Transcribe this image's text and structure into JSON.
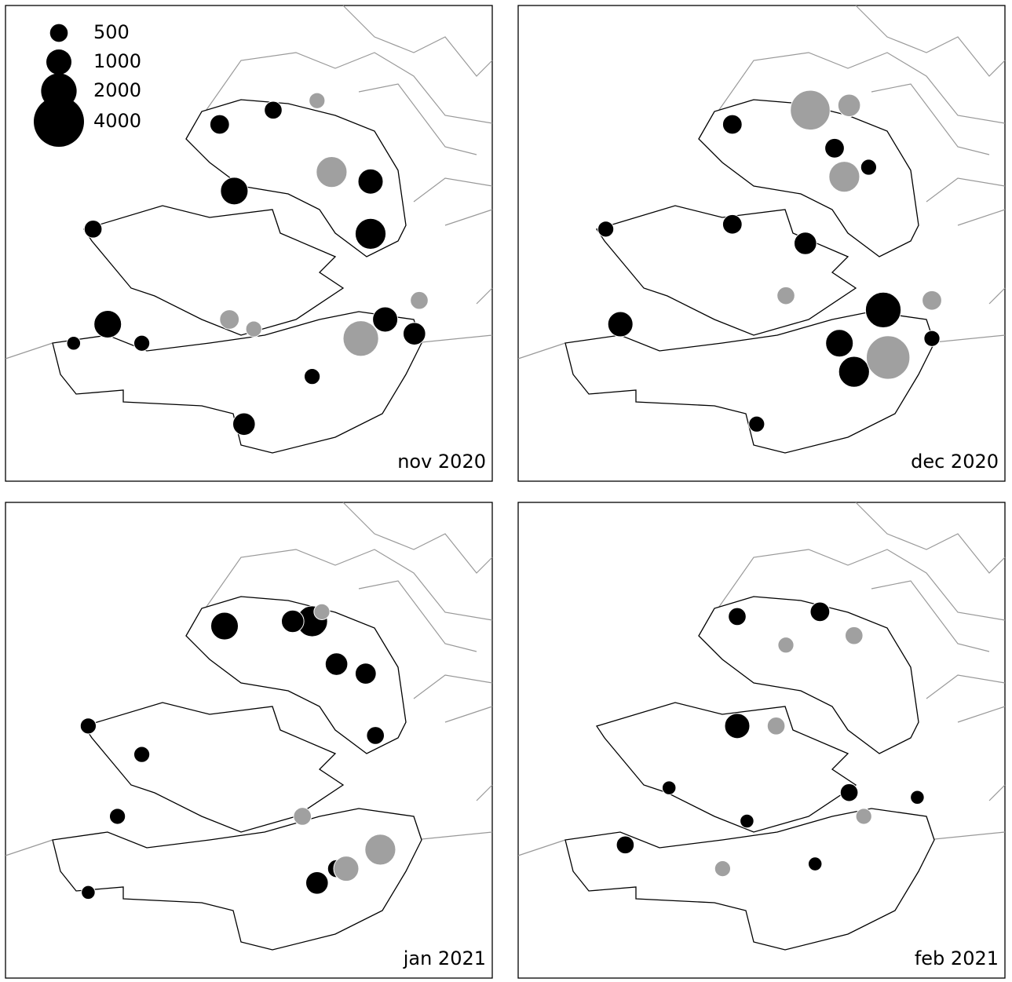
{
  "chart_data": [
    {
      "type": "bubble",
      "title": "nov 2020",
      "size_legend": {
        "values": [
          500,
          1000,
          2000,
          4000
        ]
      },
      "series": [
        {
          "color": "#000000",
          "x": [
            0.75,
            0.47,
            0.21,
            0.49,
            0.78,
            0.84,
            0.18,
            0.75,
            0.44,
            0.55,
            0.28,
            0.63,
            0.14
          ],
          "y": [
            0.48,
            0.39,
            0.67,
            0.88,
            0.66,
            0.69,
            0.47,
            0.37,
            0.25,
            0.22,
            0.71,
            0.78,
            0.71
          ],
          "values": [
            1500,
            1200,
            1200,
            800,
            1000,
            800,
            500,
            1000,
            600,
            500,
            400,
            400,
            300
          ]
        },
        {
          "color": "#a0a0a0",
          "x": [
            0.73,
            0.67,
            0.46,
            0.51,
            0.64,
            0.85
          ],
          "y": [
            0.7,
            0.35,
            0.66,
            0.68,
            0.2,
            0.62
          ],
          "values": [
            2000,
            1500,
            600,
            400,
            400,
            500
          ]
        }
      ]
    },
    {
      "type": "bubble",
      "title": "dec 2020",
      "series": [
        {
          "color": "#000000",
          "x": [
            0.75,
            0.69,
            0.59,
            0.44,
            0.44,
            0.65,
            0.72,
            0.21,
            0.66,
            0.85,
            0.49,
            0.18
          ],
          "y": [
            0.64,
            0.77,
            0.5,
            0.25,
            0.46,
            0.3,
            0.34,
            0.67,
            0.71,
            0.7,
            0.88,
            0.47
          ],
          "values": [
            2000,
            1500,
            800,
            600,
            600,
            600,
            400,
            1000,
            1200,
            400,
            400,
            400
          ]
        },
        {
          "color": "#a0a0a0",
          "x": [
            0.76,
            0.6,
            0.67,
            0.68,
            0.85,
            0.55
          ],
          "y": [
            0.74,
            0.22,
            0.36,
            0.21,
            0.62,
            0.61
          ],
          "values": [
            3000,
            2500,
            1500,
            800,
            600,
            500
          ]
        }
      ]
    },
    {
      "type": "bubble",
      "title": "jan 2021",
      "series": [
        {
          "color": "#000000",
          "x": [
            0.63,
            0.45,
            0.59,
            0.64,
            0.68,
            0.74,
            0.76,
            0.23,
            0.17,
            0.28,
            0.68,
            0.17
          ],
          "y": [
            0.25,
            0.26,
            0.25,
            0.8,
            0.34,
            0.36,
            0.49,
            0.66,
            0.47,
            0.53,
            0.77,
            0.82
          ],
          "values": [
            1500,
            1200,
            800,
            800,
            800,
            700,
            500,
            400,
            400,
            400,
            500,
            300
          ]
        },
        {
          "color": "#a0a0a0",
          "x": [
            0.77,
            0.7,
            0.61,
            0.65
          ],
          "y": [
            0.73,
            0.77,
            0.66,
            0.23
          ],
          "values": [
            1500,
            1000,
            500,
            400
          ]
        }
      ]
    },
    {
      "type": "bubble",
      "title": "feb 2021",
      "series": [
        {
          "color": "#000000",
          "x": [
            0.45,
            0.62,
            0.68,
            0.45,
            0.22,
            0.47,
            0.82,
            0.61,
            0.31
          ],
          "y": [
            0.47,
            0.23,
            0.61,
            0.24,
            0.72,
            0.67,
            0.62,
            0.76,
            0.6
          ],
          "values": [
            1000,
            600,
            500,
            500,
            500,
            300,
            300,
            300,
            300
          ]
        },
        {
          "color": "#a0a0a0",
          "x": [
            0.69,
            0.53,
            0.42,
            0.71,
            0.55
          ],
          "y": [
            0.28,
            0.47,
            0.77,
            0.66,
            0.3
          ],
          "values": [
            500,
            500,
            400,
            400,
            400
          ]
        }
      ]
    }
  ]
}
